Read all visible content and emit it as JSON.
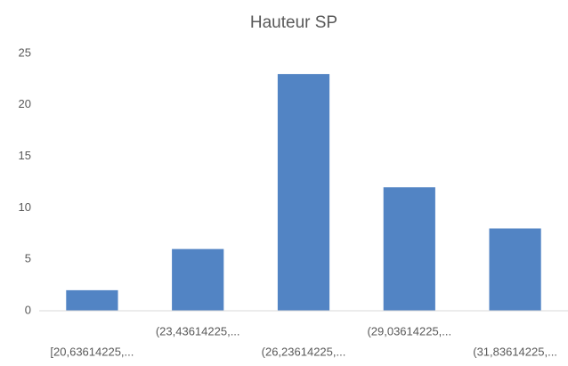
{
  "chart_data": {
    "type": "bar",
    "title": "Hauteur SP",
    "categories": [
      "[20,63614225,...",
      "(23,43614225,...",
      "(26,23614225,...",
      "(29,03614225,...",
      "(31,83614225,..."
    ],
    "values": [
      2,
      6,
      23,
      12,
      8
    ],
    "color": "#5284c4",
    "ylim": [
      0,
      25
    ],
    "yticks": [
      0,
      5,
      10,
      15,
      20,
      25
    ],
    "grid": false
  }
}
